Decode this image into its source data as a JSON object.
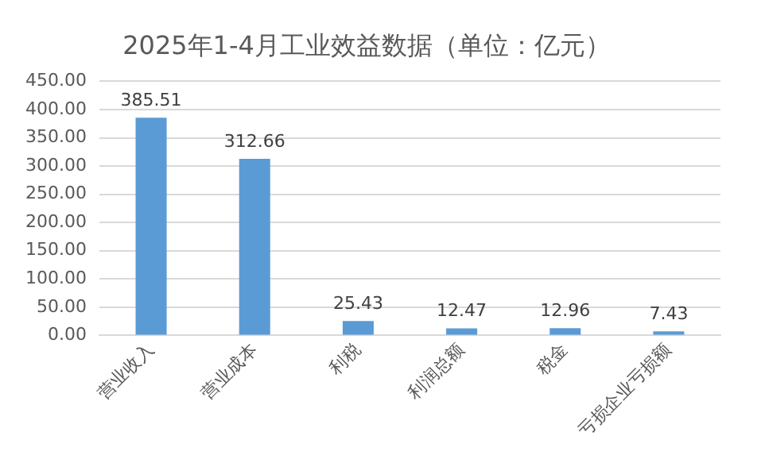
{
  "chart_data": {
    "type": "bar",
    "title": "2025年1-4月工业效益数据（单位：亿元）",
    "categories": [
      "营业收入",
      "营业成本",
      "利税",
      "利润总额",
      "税金",
      "亏损企业亏损额"
    ],
    "values": [
      385.51,
      312.66,
      25.43,
      12.47,
      12.96,
      7.43
    ],
    "color": "#5b9bd5",
    "ylim": [
      0,
      450
    ],
    "yticks": [
      {
        "value": 0,
        "label": "0.00"
      },
      {
        "value": 50,
        "label": "50.00"
      },
      {
        "value": 100,
        "label": "100.00"
      },
      {
        "value": 150,
        "label": "150.00"
      },
      {
        "value": 200,
        "label": "200.00"
      },
      {
        "value": 250,
        "label": "250.00"
      },
      {
        "value": 300,
        "label": "300.00"
      },
      {
        "value": 350,
        "label": "350.00"
      },
      {
        "value": 400,
        "label": "400.00"
      },
      {
        "value": 450,
        "label": "450.00"
      }
    ],
    "grid": "y",
    "data_labels": true
  }
}
